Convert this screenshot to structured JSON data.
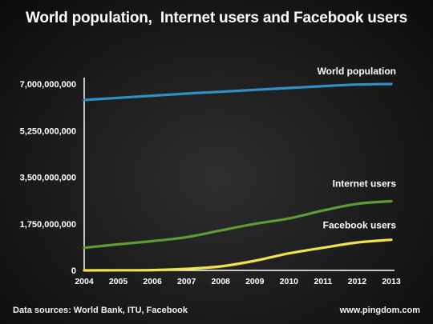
{
  "chart_data": {
    "type": "line",
    "title": "World population,  Internet users and Facebook users",
    "xlabel": "",
    "ylabel": "",
    "x": [
      2004,
      2005,
      2006,
      2007,
      2008,
      2009,
      2010,
      2011,
      2012,
      2013
    ],
    "ylim": [
      0,
      7000000000
    ],
    "yticks": [
      0,
      1750000000,
      3500000000,
      5250000000,
      7000000000
    ],
    "ytick_labels": [
      "0",
      "1,750,000,000",
      "3,500,000,000",
      "5,250,000,000",
      "7,000,000,000"
    ],
    "xtick_labels": [
      "2004",
      "2005",
      "2006",
      "2007",
      "2008",
      "2009",
      "2010",
      "2011",
      "2012",
      "2013"
    ],
    "grid": false,
    "series": [
      {
        "name": "World population",
        "color": "#2f8fc9",
        "values": [
          6400000000,
          6480000000,
          6560000000,
          6640000000,
          6710000000,
          6780000000,
          6850000000,
          6920000000,
          6980000000,
          7000000000
        ]
      },
      {
        "name": "Internet users",
        "color": "#5f9c34",
        "values": [
          850000000,
          980000000,
          1100000000,
          1250000000,
          1500000000,
          1750000000,
          1950000000,
          2250000000,
          2500000000,
          2600000000
        ]
      },
      {
        "name": "Facebook users",
        "color": "#f0e24a",
        "values": [
          1000000,
          5500000,
          12000000,
          58000000,
          150000000,
          360000000,
          640000000,
          850000000,
          1050000000,
          1150000000
        ]
      }
    ]
  },
  "footer": {
    "source": "Data sources: World Bank, ITU, Facebook",
    "url": "www.pingdom.com"
  }
}
